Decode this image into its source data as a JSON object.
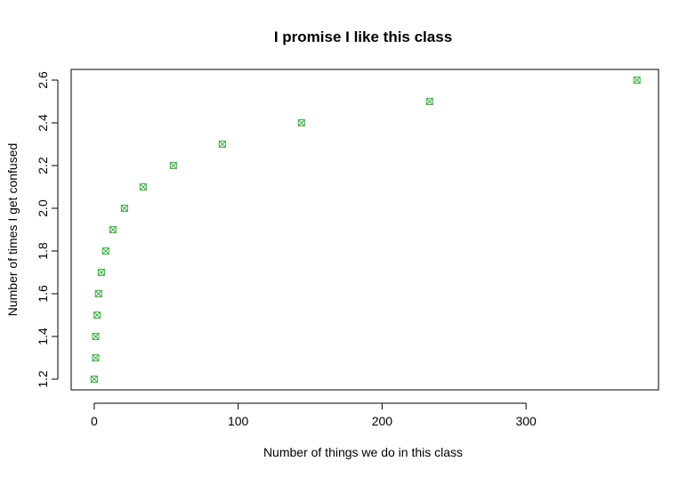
{
  "chart_data": {
    "type": "scatter",
    "title": "I promise I like this class",
    "xlabel": "Number of things we do in this class",
    "ylabel": "Number of times I get confused",
    "xlim": [
      -16,
      392
    ],
    "ylim": [
      1.15,
      2.65
    ],
    "x_ticks": [
      0,
      100,
      200,
      300
    ],
    "y_ticks": [
      1.2,
      1.4,
      1.6,
      1.8,
      2.0,
      2.2,
      2.4,
      2.6
    ],
    "y_tick_labels": [
      "1.2",
      "1.4",
      "1.6",
      "1.8",
      "2.0",
      "2.2",
      "2.4",
      "2.6"
    ],
    "grid": false,
    "marker": "square-x",
    "point_color": "#4caf50",
    "series": [
      {
        "x": [
          0,
          1,
          1,
          2,
          3,
          5,
          8,
          13,
          21,
          34,
          55,
          89,
          144,
          233,
          377
        ],
        "y": [
          1.2,
          1.3,
          1.4,
          1.5,
          1.6,
          1.7,
          1.8,
          1.9,
          2.0,
          2.1,
          2.2,
          2.3,
          2.4,
          2.5,
          2.6
        ]
      }
    ]
  }
}
